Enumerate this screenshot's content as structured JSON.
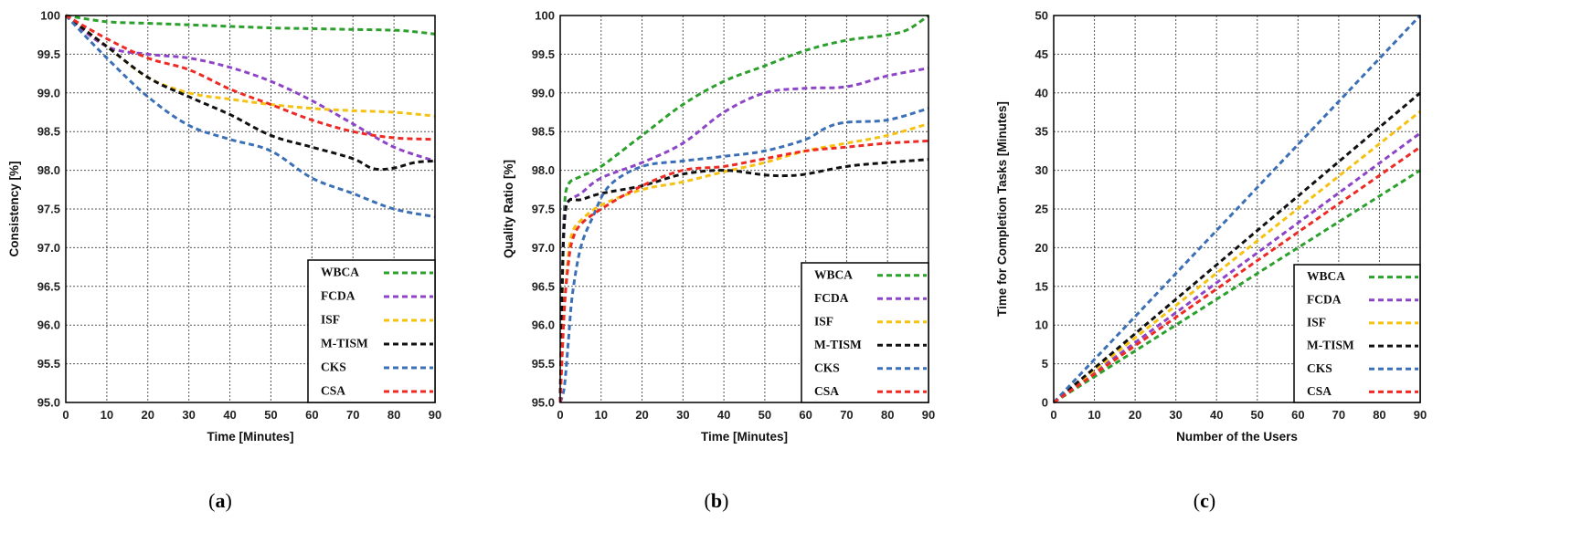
{
  "figure": {
    "panels": [
      "a",
      "b",
      "c"
    ]
  },
  "colors": {
    "WBCA": "#2ca02c",
    "FCDA": "#8e44c6",
    "ISF": "#f5c211",
    "M-TISM": "#111111",
    "CKS": "#3b6fb6",
    "CSA": "#ee2a24"
  },
  "chart_data": [
    {
      "type": "line",
      "panel_label": "a",
      "title": "",
      "xlabel": "Time [Minutes]",
      "ylabel": "Consistency [%]",
      "xlim": [
        0,
        90
      ],
      "ylim": [
        95.0,
        100
      ],
      "xticks": [
        "0",
        "10",
        "20",
        "30",
        "40",
        "50",
        "60",
        "70",
        "80",
        "90"
      ],
      "yticks": [
        "95.0",
        "95.5",
        "96.0",
        "96.5",
        "97.0",
        "97.5",
        "98.0",
        "98.5",
        "99.0",
        "99.5",
        "100"
      ],
      "grid": true,
      "legend_position": "bottom-right",
      "series": [
        {
          "name": "WBCA",
          "x": [
            0,
            10,
            20,
            30,
            40,
            50,
            60,
            70,
            80,
            85,
            90
          ],
          "y": [
            100,
            99.92,
            99.9,
            99.88,
            99.86,
            99.84,
            99.83,
            99.82,
            99.81,
            99.79,
            99.76
          ]
        },
        {
          "name": "FCDA",
          "x": [
            0,
            10,
            20,
            30,
            40,
            50,
            60,
            70,
            80,
            90
          ],
          "y": [
            100,
            99.6,
            99.5,
            99.45,
            99.33,
            99.15,
            98.9,
            98.6,
            98.3,
            98.12
          ]
        },
        {
          "name": "ISF",
          "x": [
            0,
            10,
            20,
            30,
            40,
            50,
            60,
            70,
            80,
            90
          ],
          "y": [
            100,
            99.6,
            99.2,
            99.0,
            98.92,
            98.85,
            98.8,
            98.77,
            98.75,
            98.7
          ]
        },
        {
          "name": "M-TISM",
          "x": [
            0,
            10,
            20,
            30,
            40,
            50,
            60,
            70,
            75,
            80,
            85,
            90
          ],
          "y": [
            100,
            99.6,
            99.2,
            98.95,
            98.72,
            98.45,
            98.3,
            98.15,
            98.02,
            98.03,
            98.1,
            98.12
          ]
        },
        {
          "name": "CKS",
          "x": [
            0,
            10,
            20,
            30,
            40,
            50,
            60,
            70,
            80,
            90
          ],
          "y": [
            100,
            99.45,
            98.95,
            98.58,
            98.4,
            98.25,
            97.9,
            97.7,
            97.5,
            97.4
          ]
        },
        {
          "name": "CSA",
          "x": [
            0,
            10,
            20,
            30,
            40,
            50,
            60,
            70,
            80,
            90
          ],
          "y": [
            100,
            99.7,
            99.45,
            99.3,
            99.05,
            98.85,
            98.65,
            98.5,
            98.42,
            98.4
          ]
        }
      ]
    },
    {
      "type": "line",
      "panel_label": "b",
      "title": "",
      "xlabel": "Time [Minutes]",
      "ylabel": "Quality Ratio [%]",
      "xlim": [
        0,
        90
      ],
      "ylim": [
        95.0,
        100
      ],
      "xticks": [
        "0",
        "10",
        "20",
        "30",
        "40",
        "50",
        "60",
        "70",
        "80",
        "90"
      ],
      "yticks": [
        "95.0",
        "95.5",
        "96.0",
        "96.5",
        "97.0",
        "97.5",
        "98.0",
        "98.5",
        "99.0",
        "99.5",
        "100"
      ],
      "grid": true,
      "legend_position": "bottom-right",
      "series": [
        {
          "name": "WBCA",
          "x": [
            0,
            0.5,
            1,
            2,
            5,
            10,
            20,
            30,
            40,
            50,
            60,
            70,
            80,
            85,
            90
          ],
          "y": [
            95.0,
            96.5,
            97.5,
            97.82,
            97.92,
            98.05,
            98.45,
            98.85,
            99.15,
            99.35,
            99.55,
            99.68,
            99.75,
            99.82,
            100
          ]
        },
        {
          "name": "FCDA",
          "x": [
            0,
            0.5,
            1,
            2,
            5,
            10,
            20,
            30,
            40,
            50,
            60,
            70,
            80,
            90
          ],
          "y": [
            95.0,
            96.5,
            97.4,
            97.6,
            97.7,
            97.9,
            98.1,
            98.35,
            98.75,
            99.0,
            99.06,
            99.08,
            99.22,
            99.32
          ]
        },
        {
          "name": "ISF",
          "x": [
            0,
            1,
            2,
            3,
            5,
            10,
            20,
            30,
            40,
            50,
            60,
            70,
            80,
            90
          ],
          "y": [
            95.0,
            96.2,
            96.9,
            97.2,
            97.35,
            97.55,
            97.75,
            97.85,
            97.98,
            98.1,
            98.25,
            98.35,
            98.45,
            98.6
          ]
        },
        {
          "name": "M-TISM",
          "x": [
            0,
            0.5,
            1,
            2,
            5,
            10,
            20,
            30,
            40,
            50,
            55,
            60,
            70,
            80,
            90
          ],
          "y": [
            95.0,
            96.5,
            97.3,
            97.6,
            97.62,
            97.7,
            97.8,
            97.95,
            98.0,
            97.94,
            97.93,
            97.95,
            98.05,
            98.1,
            98.14
          ]
        },
        {
          "name": "CKS",
          "x": [
            0,
            1,
            2,
            3,
            5,
            8,
            12,
            20,
            30,
            40,
            50,
            60,
            65,
            70,
            80,
            90
          ],
          "y": [
            95.0,
            95.2,
            95.8,
            96.4,
            97.0,
            97.4,
            97.8,
            98.05,
            98.12,
            98.18,
            98.25,
            98.4,
            98.55,
            98.62,
            98.65,
            98.8
          ]
        },
        {
          "name": "CSA",
          "x": [
            0,
            1,
            2,
            3,
            5,
            10,
            20,
            30,
            40,
            50,
            60,
            70,
            80,
            90
          ],
          "y": [
            95.0,
            96.2,
            96.8,
            97.1,
            97.3,
            97.5,
            97.8,
            98.0,
            98.05,
            98.15,
            98.25,
            98.3,
            98.35,
            98.38
          ]
        }
      ]
    },
    {
      "type": "line",
      "panel_label": "c",
      "title": "",
      "xlabel": "Number of the Users",
      "ylabel": "Time for Completion Tasks [Minutes]",
      "xlim": [
        0,
        90
      ],
      "ylim": [
        0,
        50
      ],
      "xticks": [
        "0",
        "10",
        "20",
        "30",
        "40",
        "50",
        "60",
        "70",
        "80",
        "90"
      ],
      "yticks": [
        "0",
        "5",
        "10",
        "15",
        "20",
        "25",
        "30",
        "35",
        "40",
        "45",
        "50"
      ],
      "grid": true,
      "legend_position": "bottom-right",
      "series": [
        {
          "name": "WBCA",
          "x": [
            0,
            90
          ],
          "y": [
            0,
            30
          ]
        },
        {
          "name": "FCDA",
          "x": [
            0,
            90
          ],
          "y": [
            0,
            34.8
          ]
        },
        {
          "name": "ISF",
          "x": [
            0,
            90
          ],
          "y": [
            0,
            37.6
          ]
        },
        {
          "name": "M-TISM",
          "x": [
            0,
            90
          ],
          "y": [
            0,
            40
          ]
        },
        {
          "name": "CKS",
          "x": [
            0,
            90
          ],
          "y": [
            0,
            50
          ]
        },
        {
          "name": "CSA",
          "x": [
            0,
            90
          ],
          "y": [
            0,
            33
          ]
        }
      ]
    }
  ]
}
